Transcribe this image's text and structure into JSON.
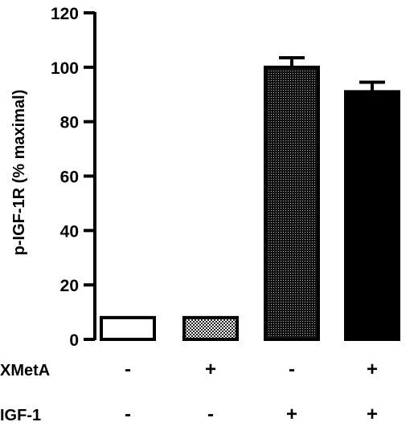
{
  "chart_data": {
    "type": "bar",
    "title": "",
    "xlabel": "",
    "ylabel": "p-IGF-1R (% maximal)",
    "ylim": [
      0,
      120
    ],
    "yticks": [
      0,
      20,
      40,
      60,
      80,
      100,
      120
    ],
    "grid": false,
    "bars": [
      {
        "value": 8,
        "error": 0,
        "fill": "white"
      },
      {
        "value": 8,
        "error": 0,
        "fill": "light-stipple"
      },
      {
        "value": 100,
        "error": 3.5,
        "fill": "dark-stipple"
      },
      {
        "value": 91,
        "error": 3.5,
        "fill": "black"
      }
    ],
    "conditions": [
      {
        "label": "XMetA",
        "values": [
          "-",
          "+",
          "-",
          "+"
        ]
      },
      {
        "label": "IGF-1",
        "values": [
          "-",
          "-",
          "+",
          "+"
        ]
      }
    ]
  }
}
